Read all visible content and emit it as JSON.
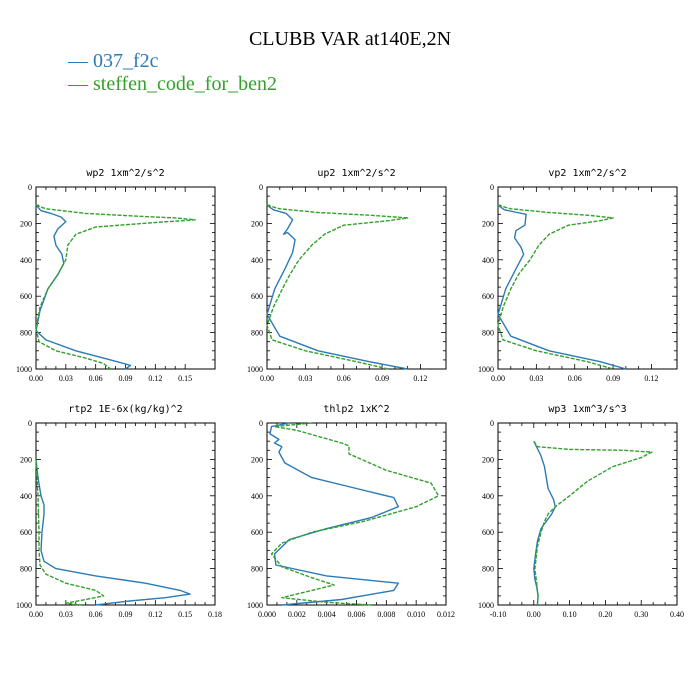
{
  "title": "CLUBB VAR at140E,2N",
  "legend": [
    {
      "name": "037_f2c",
      "color": "#2c7bb6",
      "symbol": "—"
    },
    {
      "name": "steffen_code_for_ben2",
      "color": "#33a02c",
      "symbol": "—"
    }
  ],
  "chart_data": [
    {
      "type": "line",
      "title": "wp2  1xm^2/s^2",
      "xlim": [
        0,
        0.18
      ],
      "ylim": [
        1000,
        0
      ],
      "xticks": [
        "0.00",
        "0.03",
        "0.06",
        "0.09",
        "0.12",
        "0.15"
      ],
      "xtick_values": [
        0,
        0.03,
        0.06,
        0.09,
        0.12,
        0.15
      ],
      "yticks": [
        "0",
        "200",
        "400",
        "600",
        "800",
        "1000"
      ],
      "series": [
        {
          "name": "037_f2c",
          "x": [
            0,
            0.005,
            0.015,
            0.025,
            0.03,
            0.022,
            0.018,
            0.02,
            0.026,
            0.028,
            0.022,
            0.012,
            0.004,
            0,
            0.01,
            0.04,
            0.075,
            0.095,
            0.09
          ],
          "y": [
            100,
            130,
            145,
            165,
            190,
            230,
            270,
            320,
            370,
            420,
            480,
            560,
            680,
            790,
            840,
            900,
            950,
            980,
            1000
          ]
        },
        {
          "name": "steffen_code_for_ben2",
          "x": [
            0,
            0.01,
            0.05,
            0.1,
            0.14,
            0.16,
            0.12,
            0.06,
            0.04,
            0.032,
            0.03,
            0.022,
            0.012,
            0.004,
            0,
            0.003,
            0.02,
            0.05,
            0.068,
            0.075
          ],
          "y": [
            100,
            120,
            145,
            160,
            170,
            180,
            195,
            220,
            260,
            320,
            400,
            480,
            560,
            660,
            780,
            850,
            900,
            940,
            970,
            1000
          ]
        }
      ]
    },
    {
      "type": "line",
      "title": "up2  1xm^2/s^2",
      "xlim": [
        0,
        0.14
      ],
      "ylim": [
        1000,
        0
      ],
      "xticks": [
        "0.00",
        "0.03",
        "0.06",
        "0.09",
        "0.12"
      ],
      "xtick_values": [
        0,
        0.03,
        0.06,
        0.09,
        0.12
      ],
      "yticks": [
        "0",
        "200",
        "400",
        "600",
        "800",
        "1000"
      ],
      "series": [
        {
          "name": "037_f2c",
          "x": [
            0,
            0.005,
            0.015,
            0.02,
            0.016,
            0.013,
            0.016,
            0.022,
            0.02,
            0.014,
            0.006,
            0,
            0.01,
            0.04,
            0.08,
            0.11
          ],
          "y": [
            100,
            125,
            145,
            180,
            230,
            260,
            250,
            290,
            360,
            450,
            560,
            700,
            820,
            900,
            960,
            1000
          ]
        },
        {
          "name": "steffen_code_for_ben2",
          "x": [
            0,
            0.01,
            0.04,
            0.08,
            0.11,
            0.095,
            0.06,
            0.045,
            0.035,
            0.025,
            0.018,
            0.012,
            0.005,
            0,
            0.004,
            0.03,
            0.07,
            0.095
          ],
          "y": [
            100,
            120,
            140,
            155,
            170,
            185,
            210,
            260,
            320,
            400,
            480,
            560,
            660,
            760,
            840,
            900,
            960,
            1000
          ]
        }
      ]
    },
    {
      "type": "line",
      "title": "vp2  1xm^2/s^2",
      "xlim": [
        0,
        0.14
      ],
      "ylim": [
        1000,
        0
      ],
      "xticks": [
        "0.00",
        "0.03",
        "0.06",
        "0.09",
        "0.12"
      ],
      "xtick_values": [
        0,
        0.03,
        0.06,
        0.09,
        0.12
      ],
      "yticks": [
        "0",
        "200",
        "400",
        "600",
        "800",
        "1000"
      ],
      "series": [
        {
          "name": "037_f2c",
          "x": [
            0,
            0.005,
            0.015,
            0.022,
            0.021,
            0.014,
            0.013,
            0.018,
            0.02,
            0.014,
            0.006,
            0,
            0.01,
            0.04,
            0.08,
            0.1
          ],
          "y": [
            100,
            125,
            140,
            150,
            210,
            240,
            280,
            330,
            370,
            450,
            560,
            700,
            820,
            900,
            960,
            1000
          ]
        },
        {
          "name": "steffen_code_for_ben2",
          "x": [
            0,
            0.01,
            0.04,
            0.07,
            0.09,
            0.08,
            0.055,
            0.04,
            0.032,
            0.025,
            0.016,
            0.01,
            0.004,
            0,
            0.004,
            0.03,
            0.07,
            0.09
          ],
          "y": [
            100,
            120,
            140,
            155,
            170,
            185,
            210,
            260,
            320,
            400,
            480,
            560,
            660,
            760,
            840,
            900,
            960,
            1000
          ]
        }
      ]
    },
    {
      "type": "line",
      "title": "rtp2  1E-6x(kg/kg)^2",
      "xlim": [
        0,
        0.18
      ],
      "ylim": [
        1000,
        0
      ],
      "xticks": [
        "0.00",
        "0.03",
        "0.06",
        "0.09",
        "0.12",
        "0.15",
        "0.18"
      ],
      "xtick_values": [
        0,
        0.03,
        0.06,
        0.09,
        0.12,
        0.15,
        0.18
      ],
      "yticks": [
        "0",
        "200",
        "400",
        "600",
        "800",
        "1000"
      ],
      "series": [
        {
          "name": "037_f2c",
          "x": [
            0,
            0.002,
            0.005,
            0.008,
            0.008,
            0.006,
            0.005,
            0.008,
            0.02,
            0.06,
            0.11,
            0.145,
            0.155,
            0.13,
            0.09,
            0.06
          ],
          "y": [
            200,
            300,
            400,
            450,
            500,
            600,
            700,
            760,
            800,
            840,
            880,
            920,
            940,
            960,
            980,
            1000
          ]
        },
        {
          "name": "steffen_code_for_ben2",
          "x": [
            0,
            0.002,
            0.003,
            0.003,
            0.004,
            0.01,
            0.03,
            0.06,
            0.068,
            0.05,
            0.03,
            0.045
          ],
          "y": [
            200,
            400,
            600,
            700,
            780,
            830,
            880,
            920,
            950,
            970,
            990,
            1000
          ]
        }
      ]
    },
    {
      "type": "line",
      "title": "thlp2  1xK^2",
      "xlim": [
        0,
        0.012
      ],
      "ylim": [
        1000,
        0
      ],
      "xticks": [
        "0.000",
        "0.002",
        "0.004",
        "0.006",
        "0.008",
        "0.010",
        "0.012"
      ],
      "xtick_values": [
        0,
        0.002,
        0.004,
        0.006,
        0.008,
        0.01,
        0.012
      ],
      "yticks": [
        "0",
        "200",
        "400",
        "600",
        "800",
        "1000"
      ],
      "series": [
        {
          "name": "037_f2c",
          "x": [
            0.0015,
            0.0003,
            0.0002,
            0.0008,
            0.0005,
            0.001,
            0.0008,
            0.0012,
            0.003,
            0.006,
            0.0085,
            0.0088,
            0.007,
            0.004,
            0.0015,
            0.0005,
            0.0006,
            0.004,
            0.0088,
            0.0085,
            0.005,
            0.001
          ],
          "y": [
            0,
            20,
            60,
            90,
            110,
            130,
            160,
            220,
            300,
            360,
            410,
            460,
            520,
            580,
            640,
            720,
            780,
            840,
            880,
            920,
            970,
            1000
          ]
        },
        {
          "name": "steffen_code_for_ben2",
          "x": [
            0.003,
            0.0005,
            0.002,
            0.005,
            0.0055,
            0.0055,
            0.008,
            0.011,
            0.0115,
            0.01,
            0.0065,
            0.003,
            0.001,
            0.0003,
            0.001,
            0.003,
            0.0045,
            0.003,
            0.001,
            0.004,
            0.007
          ],
          "y": [
            0,
            20,
            40,
            110,
            125,
            170,
            260,
            330,
            400,
            460,
            540,
            600,
            660,
            720,
            790,
            850,
            890,
            920,
            960,
            985,
            1000
          ]
        }
      ]
    },
    {
      "type": "line",
      "title": "wp3  1xm^3/s^3",
      "xlim": [
        -0.1,
        0.4
      ],
      "ylim": [
        1000,
        0
      ],
      "xticks": [
        "-0.10",
        "0.00",
        "0.10",
        "0.20",
        "0.30",
        "0.40"
      ],
      "xtick_values": [
        -0.1,
        0,
        0.1,
        0.2,
        0.3,
        0.4
      ],
      "yticks": [
        "0",
        "200",
        "400",
        "600",
        "800",
        "1000"
      ],
      "series": [
        {
          "name": "037_f2c",
          "x": [
            0,
            0.01,
            0.02,
            0.03,
            0.035,
            0.04,
            0.055,
            0.06,
            0.05,
            0.035,
            0.02,
            0.01,
            0.005,
            0.0,
            0.003,
            0.008,
            0.012,
            0.01
          ],
          "y": [
            100,
            140,
            180,
            240,
            300,
            360,
            420,
            460,
            500,
            540,
            580,
            650,
            720,
            800,
            860,
            900,
            950,
            1000
          ]
        },
        {
          "name": "steffen_code_for_ben2",
          "x": [
            0,
            0.01,
            0.1,
            0.25,
            0.33,
            0.3,
            0.22,
            0.15,
            0.1,
            0.06,
            0.04,
            0.03,
            0.02,
            0.01,
            0.003,
            0.008,
            0.012,
            0.01
          ],
          "y": [
            100,
            130,
            145,
            150,
            160,
            190,
            240,
            320,
            400,
            460,
            500,
            540,
            600,
            680,
            800,
            880,
            950,
            1000
          ]
        }
      ]
    }
  ]
}
